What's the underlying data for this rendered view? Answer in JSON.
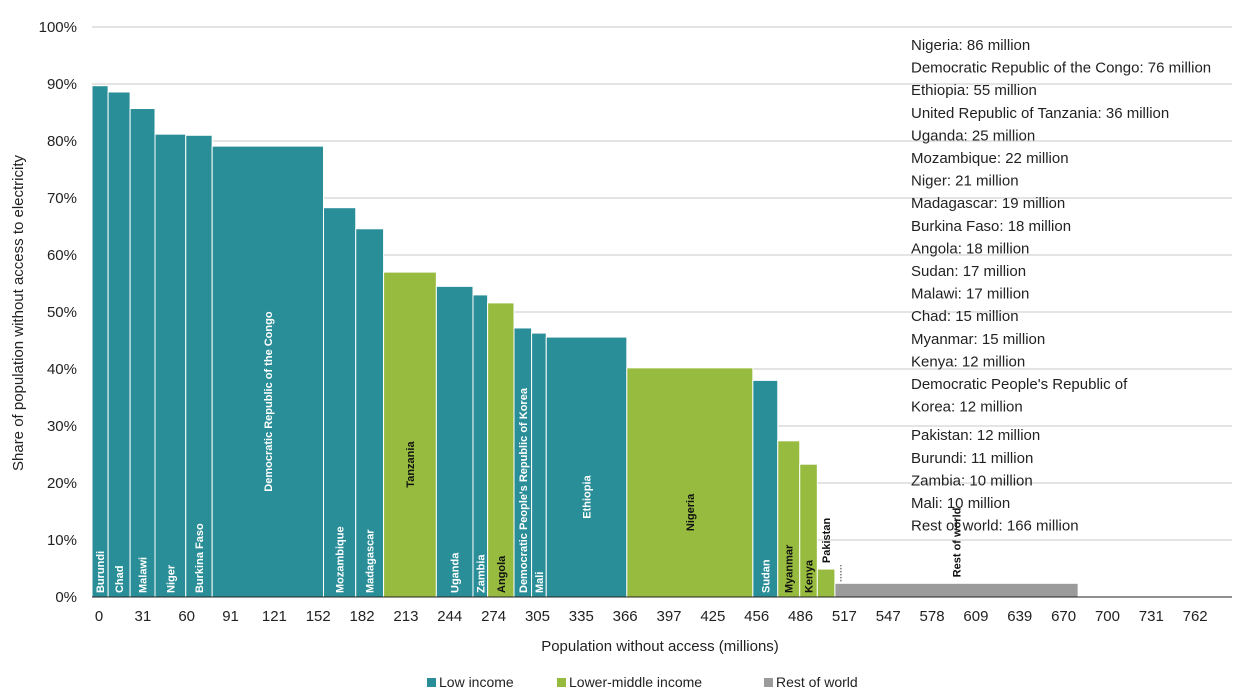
{
  "colors": {
    "low_income": "#2a8e98",
    "lower_middle_income": "#96bb3e",
    "rest_of_world": "#9b9b9b",
    "grid": "#c8c8c8",
    "bar_stroke": "#ffffff",
    "label_light": "#ffffff",
    "label_dark": "#111111"
  },
  "chart_data": {
    "type": "bar",
    "variable_width": true,
    "title": "",
    "xlabel": "Population without access (millions)",
    "ylabel": "Share of population without access to electricity",
    "xlim": [
      0,
      778
    ],
    "ylim": [
      0,
      100
    ],
    "grid": true,
    "x_ticks": [
      "0",
      "31",
      "60",
      "91",
      "121",
      "152",
      "182",
      "213",
      "244",
      "274",
      "305",
      "335",
      "366",
      "397",
      "425",
      "456",
      "486",
      "517",
      "547",
      "578",
      "609",
      "639",
      "670",
      "700",
      "731",
      "762"
    ],
    "y_ticks": [
      "0%",
      "10%",
      "20%",
      "30%",
      "40%",
      "50%",
      "60%",
      "70%",
      "80%",
      "90%",
      "100%"
    ],
    "bars": [
      {
        "label": "Burundi",
        "group": "low_income",
        "x_start": 0,
        "width": 11,
        "value": 89.7
      },
      {
        "label": "Chad",
        "group": "low_income",
        "x_start": 11,
        "width": 15,
        "value": 88.6
      },
      {
        "label": "Malawi",
        "group": "low_income",
        "x_start": 26,
        "width": 17,
        "value": 85.7
      },
      {
        "label": "Niger",
        "group": "low_income",
        "x_start": 43,
        "width": 21,
        "value": 81.2
      },
      {
        "label": "Burkina Faso",
        "group": "low_income",
        "x_start": 64,
        "width": 18,
        "value": 81.0
      },
      {
        "label": "Democratic Republic of the Congo",
        "group": "low_income",
        "x_start": 82,
        "width": 76,
        "value": 79.1
      },
      {
        "label": "Mozambique",
        "group": "low_income",
        "x_start": 158,
        "width": 22,
        "value": 68.3
      },
      {
        "label": "Madagascar",
        "group": "low_income",
        "x_start": 180,
        "width": 19,
        "value": 64.6
      },
      {
        "label": "Tanzania",
        "group": "lower_middle_income",
        "x_start": 199,
        "width": 36,
        "value": 57.0
      },
      {
        "label": "Uganda",
        "group": "low_income",
        "x_start": 235,
        "width": 25,
        "value": 54.5
      },
      {
        "label": "Zambia",
        "group": "low_income",
        "x_start": 260,
        "width": 10,
        "value": 53.0
      },
      {
        "label": "Angola",
        "group": "lower_middle_income",
        "x_start": 270,
        "width": 18,
        "value": 51.6
      },
      {
        "label": "Democratic People's Republic of Korea",
        "group": "low_income",
        "x_start": 288,
        "width": 12,
        "value": 47.2
      },
      {
        "label": "Mali",
        "group": "low_income",
        "x_start": 300,
        "width": 10,
        "value": 46.3
      },
      {
        "label": "Ethiopia",
        "group": "low_income",
        "x_start": 310,
        "width": 55,
        "value": 45.6
      },
      {
        "label": "Nigeria",
        "group": "lower_middle_income",
        "x_start": 365,
        "width": 86,
        "value": 40.2
      },
      {
        "label": "Sudan",
        "group": "low_income",
        "x_start": 451,
        "width": 17,
        "value": 38.0
      },
      {
        "label": "Myanmar",
        "group": "lower_middle_income",
        "x_start": 468,
        "width": 15,
        "value": 27.4
      },
      {
        "label": "Kenya",
        "group": "lower_middle_income",
        "x_start": 483,
        "width": 12,
        "value": 23.3
      },
      {
        "label": "Pakistan",
        "group": "lower_middle_income",
        "x_start": 495,
        "width": 12,
        "value": 4.9
      },
      {
        "label": "Rest of world",
        "group": "rest_of_world",
        "x_start": 507,
        "width": 166,
        "value": 2.4
      }
    ],
    "annotations": [
      "Nigeria: 86 million",
      "Democratic Republic of the Congo: 76 million",
      "Ethiopia: 55 million",
      "United Republic of Tanzania: 36 million",
      "Uganda: 25 million",
      "Mozambique: 22 million",
      "Niger: 21 million",
      "Madagascar: 19 million",
      "Burkina Faso: 18 million",
      "Angola: 18 million",
      "Sudan: 17 million",
      "Malawi: 17 million",
      "Chad: 15 million",
      "Myanmar: 15 million",
      "Kenya: 12 million",
      "Democratic People's Republic of",
      "Korea: 12 million",
      "Pakistan: 12 million",
      "Burundi: 11 million",
      "Zambia: 10 million",
      "Mali: 10 million",
      "Rest of world: 166 million"
    ],
    "legend": {
      "position": "bottom-center",
      "items": [
        {
          "group": "low_income",
          "label": "Low income"
        },
        {
          "group": "lower_middle_income",
          "label": "Lower-middle income"
        },
        {
          "group": "rest_of_world",
          "label": "Rest of world"
        }
      ]
    }
  }
}
